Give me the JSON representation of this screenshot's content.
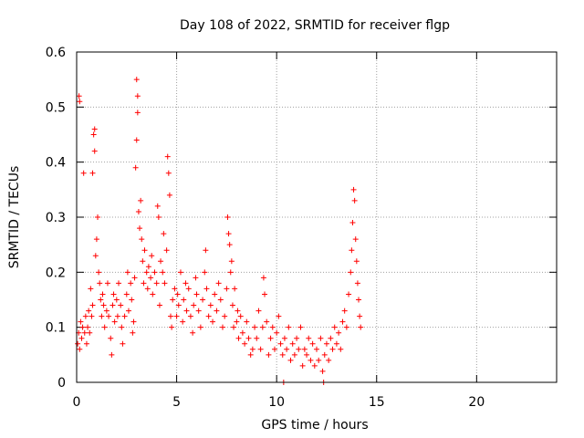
{
  "chart_data": {
    "type": "scatter",
    "title": "Day 108 of 2022, SRMTID for receiver flgp",
    "xlabel": "GPS time / hours",
    "ylabel": "SRMTID / TECUs",
    "xlim": [
      0,
      24
    ],
    "ylim": [
      0,
      0.6
    ],
    "xticks": [
      0,
      5,
      10,
      15,
      20
    ],
    "xtick_labels": [
      "0",
      "5",
      "10",
      "15",
      "20"
    ],
    "yticks": [
      0,
      0.1,
      0.2,
      0.3,
      0.4,
      0.5,
      0.6
    ],
    "ytick_labels": [
      "0",
      "0.1",
      "0.2",
      "0.3",
      "0.4",
      "0.5",
      "0.6"
    ],
    "grid": true,
    "series": [
      {
        "name": "SRMTID",
        "color": "#ff0000",
        "marker": "plus",
        "points": [
          [
            0.05,
            0.07
          ],
          [
            0.1,
            0.09
          ],
          [
            0.12,
            0.52
          ],
          [
            0.15,
            0.51
          ],
          [
            0.15,
            0.06
          ],
          [
            0.2,
            0.11
          ],
          [
            0.25,
            0.08
          ],
          [
            0.3,
            0.1
          ],
          [
            0.35,
            0.38
          ],
          [
            0.4,
            0.09
          ],
          [
            0.45,
            0.12
          ],
          [
            0.5,
            0.07
          ],
          [
            0.55,
            0.1
          ],
          [
            0.6,
            0.13
          ],
          [
            0.65,
            0.09
          ],
          [
            0.7,
            0.17
          ],
          [
            0.75,
            0.12
          ],
          [
            0.8,
            0.14
          ],
          [
            0.8,
            0.38
          ],
          [
            0.85,
            0.45
          ],
          [
            0.9,
            0.46
          ],
          [
            0.9,
            0.42
          ],
          [
            0.95,
            0.23
          ],
          [
            1.0,
            0.26
          ],
          [
            1.05,
            0.3
          ],
          [
            1.1,
            0.2
          ],
          [
            1.15,
            0.18
          ],
          [
            1.2,
            0.15
          ],
          [
            1.25,
            0.12
          ],
          [
            1.3,
            0.16
          ],
          [
            1.35,
            0.14
          ],
          [
            1.4,
            0.1
          ],
          [
            1.5,
            0.13
          ],
          [
            1.55,
            0.18
          ],
          [
            1.6,
            0.12
          ],
          [
            1.7,
            0.08
          ],
          [
            1.75,
            0.05
          ],
          [
            1.8,
            0.14
          ],
          [
            1.85,
            0.16
          ],
          [
            1.9,
            0.11
          ],
          [
            2.0,
            0.15
          ],
          [
            2.05,
            0.12
          ],
          [
            2.1,
            0.18
          ],
          [
            2.2,
            0.14
          ],
          [
            2.25,
            0.1
          ],
          [
            2.3,
            0.07
          ],
          [
            2.4,
            0.12
          ],
          [
            2.5,
            0.16
          ],
          [
            2.55,
            0.2
          ],
          [
            2.6,
            0.13
          ],
          [
            2.7,
            0.18
          ],
          [
            2.75,
            0.15
          ],
          [
            2.8,
            0.09
          ],
          [
            2.85,
            0.11
          ],
          [
            2.9,
            0.19
          ],
          [
            2.95,
            0.39
          ],
          [
            3.0,
            0.44
          ],
          [
            3.0,
            0.55
          ],
          [
            3.05,
            0.52
          ],
          [
            3.05,
            0.49
          ],
          [
            3.1,
            0.31
          ],
          [
            3.15,
            0.28
          ],
          [
            3.2,
            0.33
          ],
          [
            3.25,
            0.26
          ],
          [
            3.3,
            0.22
          ],
          [
            3.35,
            0.18
          ],
          [
            3.4,
            0.24
          ],
          [
            3.5,
            0.2
          ],
          [
            3.55,
            0.17
          ],
          [
            3.6,
            0.21
          ],
          [
            3.7,
            0.19
          ],
          [
            3.75,
            0.23
          ],
          [
            3.8,
            0.16
          ],
          [
            3.9,
            0.2
          ],
          [
            4.0,
            0.18
          ],
          [
            4.05,
            0.32
          ],
          [
            4.1,
            0.3
          ],
          [
            4.15,
            0.14
          ],
          [
            4.2,
            0.22
          ],
          [
            4.3,
            0.2
          ],
          [
            4.35,
            0.27
          ],
          [
            4.4,
            0.18
          ],
          [
            4.5,
            0.24
          ],
          [
            4.55,
            0.41
          ],
          [
            4.6,
            0.38
          ],
          [
            4.65,
            0.34
          ],
          [
            4.7,
            0.12
          ],
          [
            4.75,
            0.1
          ],
          [
            4.8,
            0.15
          ],
          [
            4.9,
            0.17
          ],
          [
            5.0,
            0.12
          ],
          [
            5.05,
            0.16
          ],
          [
            5.1,
            0.14
          ],
          [
            5.2,
            0.2
          ],
          [
            5.3,
            0.11
          ],
          [
            5.35,
            0.15
          ],
          [
            5.45,
            0.18
          ],
          [
            5.5,
            0.13
          ],
          [
            5.6,
            0.17
          ],
          [
            5.7,
            0.12
          ],
          [
            5.8,
            0.09
          ],
          [
            5.85,
            0.14
          ],
          [
            5.95,
            0.19
          ],
          [
            6.0,
            0.16
          ],
          [
            6.1,
            0.13
          ],
          [
            6.2,
            0.1
          ],
          [
            6.3,
            0.15
          ],
          [
            6.4,
            0.2
          ],
          [
            6.45,
            0.24
          ],
          [
            6.5,
            0.17
          ],
          [
            6.6,
            0.12
          ],
          [
            6.7,
            0.14
          ],
          [
            6.8,
            0.11
          ],
          [
            6.9,
            0.16
          ],
          [
            7.0,
            0.13
          ],
          [
            7.1,
            0.18
          ],
          [
            7.2,
            0.15
          ],
          [
            7.3,
            0.1
          ],
          [
            7.4,
            0.12
          ],
          [
            7.5,
            0.17
          ],
          [
            7.55,
            0.3
          ],
          [
            7.6,
            0.27
          ],
          [
            7.65,
            0.25
          ],
          [
            7.7,
            0.2
          ],
          [
            7.75,
            0.22
          ],
          [
            7.8,
            0.14
          ],
          [
            7.85,
            0.1
          ],
          [
            7.9,
            0.17
          ],
          [
            8.0,
            0.11
          ],
          [
            8.05,
            0.13
          ],
          [
            8.1,
            0.08
          ],
          [
            8.2,
            0.12
          ],
          [
            8.3,
            0.09
          ],
          [
            8.4,
            0.07
          ],
          [
            8.5,
            0.11
          ],
          [
            8.6,
            0.08
          ],
          [
            8.7,
            0.05
          ],
          [
            8.8,
            0.06
          ],
          [
            8.9,
            0.1
          ],
          [
            9.0,
            0.08
          ],
          [
            9.1,
            0.13
          ],
          [
            9.2,
            0.06
          ],
          [
            9.3,
            0.1
          ],
          [
            9.35,
            0.19
          ],
          [
            9.4,
            0.16
          ],
          [
            9.5,
            0.11
          ],
          [
            9.6,
            0.05
          ],
          [
            9.7,
            0.08
          ],
          [
            9.8,
            0.1
          ],
          [
            9.9,
            0.06
          ],
          [
            10.0,
            0.09
          ],
          [
            10.1,
            0.12
          ],
          [
            10.2,
            0.07
          ],
          [
            10.3,
            0.05
          ],
          [
            10.35,
            0.0
          ],
          [
            10.4,
            0.08
          ],
          [
            10.5,
            0.06
          ],
          [
            10.6,
            0.1
          ],
          [
            10.7,
            0.04
          ],
          [
            10.8,
            0.07
          ],
          [
            10.9,
            0.05
          ],
          [
            11.0,
            0.08
          ],
          [
            11.1,
            0.06
          ],
          [
            11.2,
            0.1
          ],
          [
            11.3,
            0.03
          ],
          [
            11.4,
            0.06
          ],
          [
            11.5,
            0.05
          ],
          [
            11.6,
            0.08
          ],
          [
            11.7,
            0.04
          ],
          [
            11.8,
            0.07
          ],
          [
            11.9,
            0.03
          ],
          [
            12.0,
            0.06
          ],
          [
            12.1,
            0.04
          ],
          [
            12.2,
            0.08
          ],
          [
            12.3,
            0.02
          ],
          [
            12.35,
            0.0
          ],
          [
            12.4,
            0.05
          ],
          [
            12.5,
            0.07
          ],
          [
            12.6,
            0.04
          ],
          [
            12.7,
            0.08
          ],
          [
            12.8,
            0.06
          ],
          [
            12.9,
            0.1
          ],
          [
            13.0,
            0.07
          ],
          [
            13.1,
            0.09
          ],
          [
            13.2,
            0.06
          ],
          [
            13.3,
            0.11
          ],
          [
            13.4,
            0.13
          ],
          [
            13.5,
            0.1
          ],
          [
            13.6,
            0.16
          ],
          [
            13.7,
            0.2
          ],
          [
            13.75,
            0.24
          ],
          [
            13.8,
            0.29
          ],
          [
            13.85,
            0.35
          ],
          [
            13.9,
            0.33
          ],
          [
            13.95,
            0.26
          ],
          [
            14.0,
            0.22
          ],
          [
            14.05,
            0.18
          ],
          [
            14.1,
            0.15
          ],
          [
            14.15,
            0.12
          ],
          [
            14.2,
            0.1
          ]
        ]
      }
    ]
  }
}
